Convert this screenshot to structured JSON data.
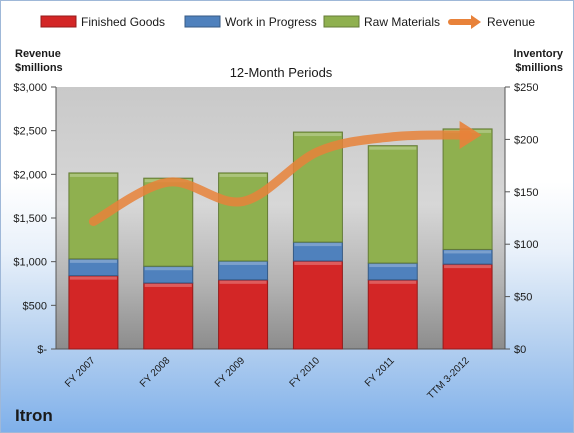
{
  "company": "Itron",
  "chart_data": {
    "type": "bar",
    "subtype": "stacked-bar-with-line",
    "title": "12-Month Periods",
    "left_axis_label": [
      "Revenue",
      "$millions"
    ],
    "right_axis_label": [
      "Inventory",
      "$millions"
    ],
    "categories": [
      "FY 2007",
      "FY 2008",
      "FY 2009",
      "FY 2010",
      "FY 2011",
      "TTM 3-2012"
    ],
    "left_axis": {
      "min": 0,
      "max": 3000,
      "ticks": [
        "$-",
        "$500",
        "$1,000",
        "$1,500",
        "$2,000",
        "$2,500",
        "$3,000"
      ]
    },
    "right_axis": {
      "min": 0,
      "max": 250,
      "ticks": [
        "$0",
        "$50",
        "$100",
        "$150",
        "$200",
        "$250"
      ]
    },
    "series": [
      {
        "name": "Finished Goods",
        "axis": "right",
        "color": "#d32626",
        "values": [
          70,
          63,
          66,
          84,
          66,
          81
        ]
      },
      {
        "name": "Work in Progress",
        "axis": "right",
        "color": "#4f81bd",
        "values": [
          16,
          16,
          18,
          18,
          16,
          14
        ]
      },
      {
        "name": "Raw Materials",
        "axis": "right",
        "color": "#8fb04f",
        "values": [
          82,
          84,
          84,
          105,
          112,
          115
        ]
      },
      {
        "name": "Revenue",
        "axis": "left",
        "type": "line",
        "color": "#e8823a",
        "values": [
          1460,
          1910,
          1690,
          2260,
          2430,
          2450
        ]
      }
    ],
    "legend_position": "top",
    "grid": false
  }
}
